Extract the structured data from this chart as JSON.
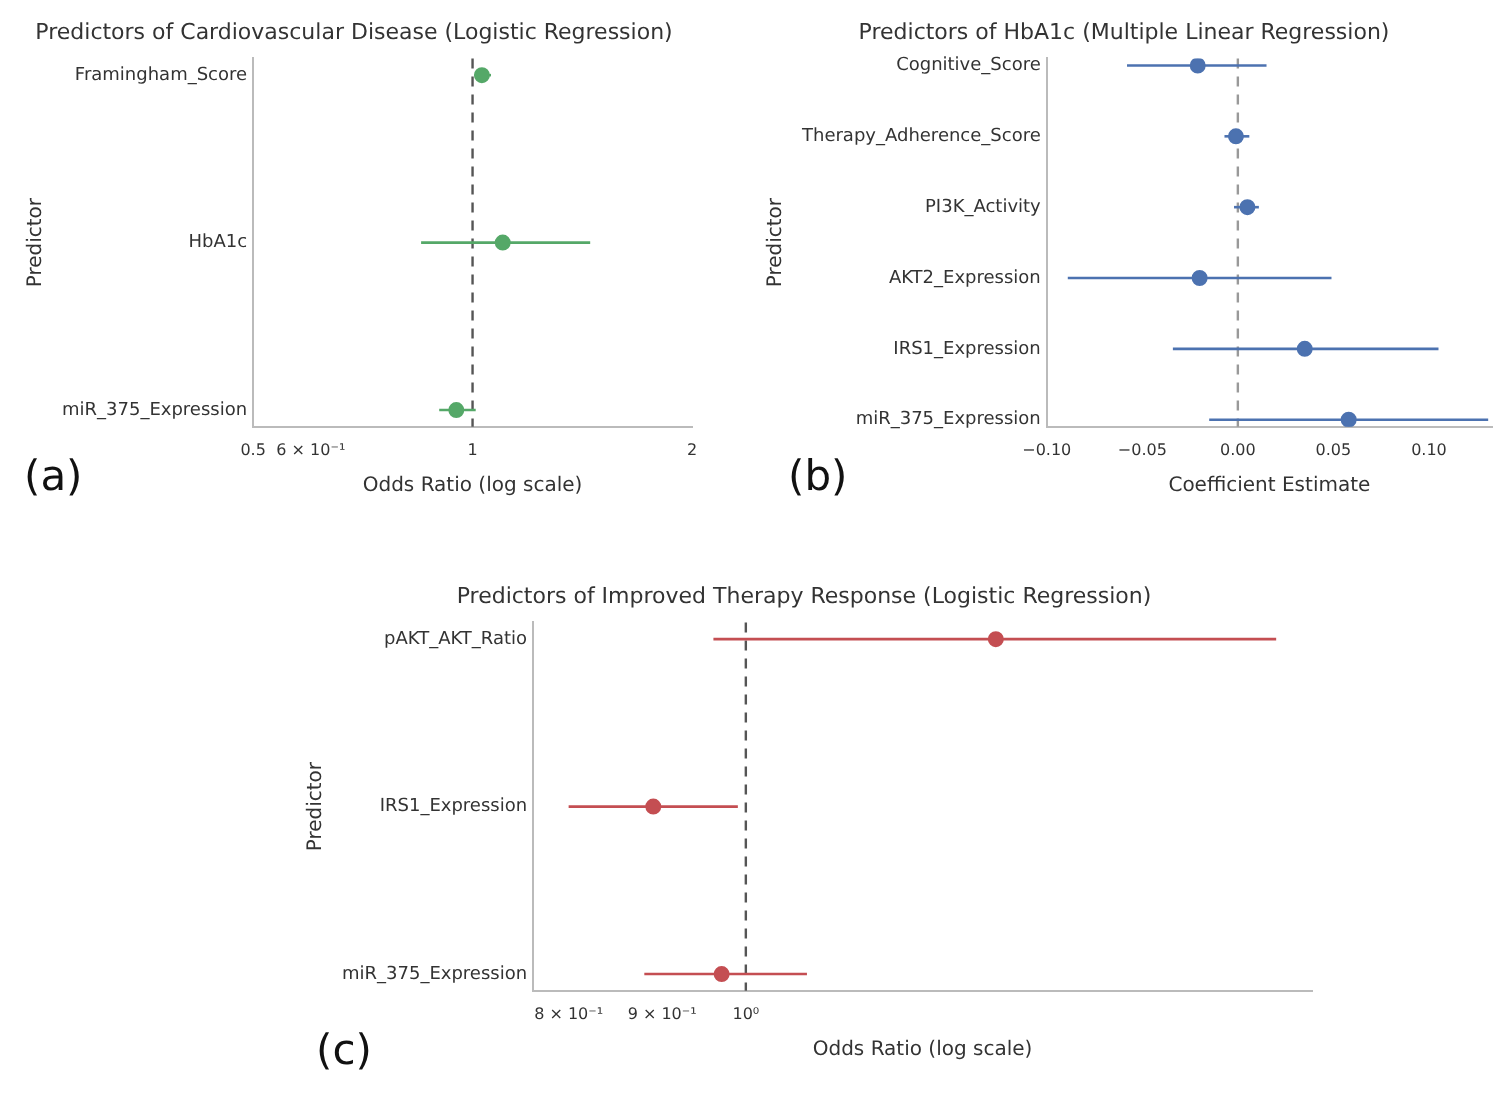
{
  "chart_data": [
    {
      "type": "scatter",
      "orientation": "horizontal",
      "title": "Predictors of Cardiovascular Disease (Logistic Regression)",
      "xlabel": "Odds Ratio (log scale)",
      "ylabel": "Predictor",
      "log": "x",
      "categories": [
        "Framingham_Score",
        "HbA1c",
        "miR_375_Expression"
      ],
      "series": [
        {
          "color": "#55a868",
          "values": [
            1.03,
            1.1,
            0.95
          ],
          "errors": [
            [
              1.02,
              1.06
            ],
            [
              0.85,
              1.45
            ],
            [
              0.9,
              1.01
            ]
          ]
        }
      ],
      "xlim": [
        0.5,
        2
      ],
      "xticks": [
        {
          "value": 0.5,
          "label": "0.5"
        },
        {
          "value": 0.6,
          "label": "6 × 10⁻¹"
        },
        1,
        2
      ],
      "ref_lines": [
        {
          "axis": "x",
          "value": 1,
          "color": "#555555",
          "line_style": "dashed"
        }
      ],
      "marker": "circle",
      "annotations": [
        "(a)"
      ]
    },
    {
      "type": "scatter",
      "orientation": "horizontal",
      "title": "Predictors of HbA1c (Multiple Linear Regression)",
      "xlabel": "Coefficient Estimate",
      "ylabel": "Predictor",
      "categories": [
        "Cognitive_Score",
        "Therapy_Adherence_Score",
        "PI3K_Activity",
        "AKT2_Expression",
        "IRS1_Expression",
        "miR_375_Expression"
      ],
      "series": [
        {
          "color": "#4c72b0",
          "values": [
            -0.021,
            -0.001,
            0.005,
            -0.02,
            0.035,
            0.058
          ],
          "errors": [
            [
              -0.058,
              0.015
            ],
            [
              -0.007,
              0.006
            ],
            [
              -0.002,
              0.011
            ],
            [
              -0.089,
              0.049
            ],
            [
              -0.034,
              0.105
            ],
            [
              -0.015,
              0.131
            ]
          ]
        }
      ],
      "xlim": [
        -0.1,
        0.133
      ],
      "xticks": [
        {
          "value": -0.1,
          "label": "−0.10"
        },
        {
          "value": -0.05,
          "label": "−0.05"
        },
        {
          "value": 0,
          "label": "0.00"
        },
        {
          "value": 0.05,
          "label": "0.05"
        },
        {
          "value": 0.1,
          "label": "0.10"
        }
      ],
      "ref_lines": [
        {
          "axis": "x",
          "value": 0,
          "color": "#999999",
          "line_style": "dashed"
        }
      ],
      "marker": "circle",
      "annotations": [
        "(b)"
      ]
    },
    {
      "type": "scatter",
      "orientation": "horizontal",
      "title": "Predictors of Improved Therapy Response (Logistic Regression)",
      "xlabel": "Odds Ratio (log scale)",
      "ylabel": "Predictor",
      "log": "x",
      "categories": [
        "pAKT_AKT_Ratio",
        "IRS1_Expression",
        "miR_375_Expression"
      ],
      "series": [
        {
          "color": "#c44e52",
          "values": [
            1.37,
            0.89,
            0.97
          ],
          "errors": [
            [
              0.96,
              1.95
            ],
            [
              0.8,
              0.99
            ],
            [
              0.88,
              1.08
            ]
          ]
        }
      ],
      "xlim": [
        0.765,
        2.04
      ],
      "xticks": [
        {
          "value": 0.8,
          "label": "8 × 10⁻¹"
        },
        {
          "value": 0.9,
          "label": "9 × 10⁻¹"
        },
        {
          "value": 1,
          "label": "10⁰"
        }
      ],
      "ref_lines": [
        {
          "axis": "x",
          "value": 1,
          "color": "#555555",
          "line_style": "dashed"
        }
      ],
      "marker": "circle",
      "annotations": [
        "(c)"
      ]
    }
  ]
}
